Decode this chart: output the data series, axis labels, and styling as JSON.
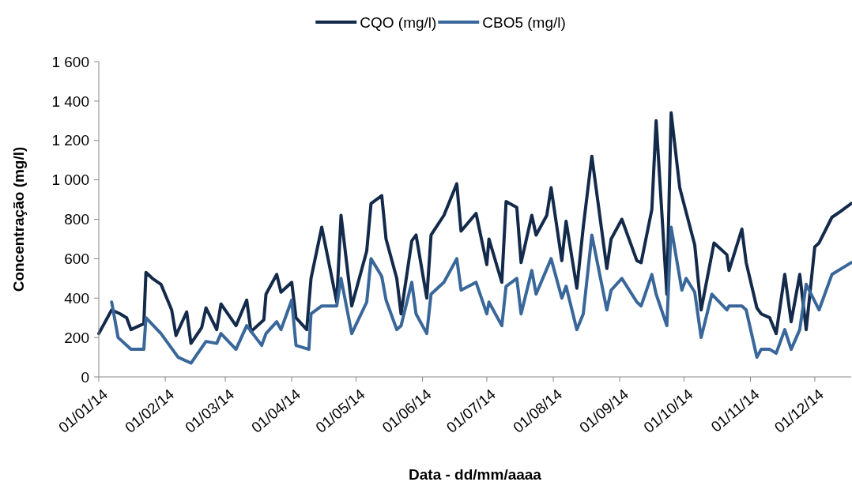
{
  "chart_data": {
    "type": "line",
    "xlabel": "Data - dd/mm/aaaa",
    "ylabel": "Concentração (mg/l)",
    "legend": "top",
    "grid": false,
    "line_style": "solid",
    "marker": "none",
    "xlim": [
      "2014-01-01",
      "2014-12-18"
    ],
    "xticks": [
      {
        "value": "2014-01-01",
        "label": "01/01/14"
      },
      {
        "value": "2014-02-01",
        "label": "01/02/14"
      },
      {
        "value": "2014-03-01",
        "label": "01/03/14"
      },
      {
        "value": "2014-04-01",
        "label": "01/04/14"
      },
      {
        "value": "2014-05-01",
        "label": "01/05/14"
      },
      {
        "value": "2014-06-01",
        "label": "01/06/14"
      },
      {
        "value": "2014-07-01",
        "label": "01/07/14"
      },
      {
        "value": "2014-08-01",
        "label": "01/08/14"
      },
      {
        "value": "2014-09-01",
        "label": "01/09/14"
      },
      {
        "value": "2014-10-01",
        "label": "01/10/14"
      },
      {
        "value": "2014-11-01",
        "label": "01/11/14"
      },
      {
        "value": "2014-12-01",
        "label": "01/12/14"
      }
    ],
    "ylim": [
      0,
      1600
    ],
    "yticks": [
      0,
      200,
      400,
      600,
      800,
      {
        "value": 1000,
        "label": "1 000"
      },
      {
        "value": 1200,
        "label": "1 200"
      },
      {
        "value": 1400,
        "label": "1 400"
      },
      {
        "value": 1600,
        "label": "1 600"
      }
    ],
    "series": [
      {
        "name": "CQO (mg/l)",
        "color": "#132a4a",
        "x": [
          "2014-01-01",
          "2014-01-07",
          "2014-01-11",
          "2014-01-14",
          "2014-01-16",
          "2014-01-22",
          "2014-01-23",
          "2014-01-26",
          "2014-01-30",
          "2014-02-04",
          "2014-02-06",
          "2014-02-11",
          "2014-02-13",
          "2014-02-18",
          "2014-02-20",
          "2014-02-25",
          "2014-02-27",
          "2014-03-06",
          "2014-03-11",
          "2014-03-13",
          "2014-03-19",
          "2014-03-20",
          "2014-03-25",
          "2014-03-27",
          "2014-04-01",
          "2014-04-03",
          "2014-04-08",
          "2014-04-10",
          "2014-04-15",
          "2014-04-22",
          "2014-04-24",
          "2014-04-29",
          "2014-05-06",
          "2014-05-08",
          "2014-05-13",
          "2014-05-15",
          "2014-05-20",
          "2014-05-22",
          "2014-05-27",
          "2014-05-29",
          "2014-06-03",
          "2014-06-05",
          "2014-06-11",
          "2014-06-17",
          "2014-06-19",
          "2014-06-26",
          "2014-07-01",
          "2014-07-02",
          "2014-07-08",
          "2014-07-10",
          "2014-07-15",
          "2014-07-17",
          "2014-07-22",
          "2014-07-24",
          "2014-07-29",
          "2014-07-31",
          "2014-08-05",
          "2014-08-07",
          "2014-08-12",
          "2014-08-15",
          "2014-08-19",
          "2014-08-26",
          "2014-08-28",
          "2014-09-02",
          "2014-09-09",
          "2014-09-11",
          "2014-09-16",
          "2014-09-18",
          "2014-09-23",
          "2014-09-25",
          "2014-09-29",
          "2014-10-06",
          "2014-10-09",
          "2014-10-15",
          "2014-10-21",
          "2014-10-22",
          "2014-10-28",
          "2014-10-30",
          "2014-11-04",
          "2014-11-06",
          "2014-11-10",
          "2014-11-13",
          "2014-11-17",
          "2014-11-20",
          "2014-11-24",
          "2014-11-27",
          "2014-12-01",
          "2014-12-03",
          "2014-12-09",
          "2014-12-13",
          "2014-12-18"
        ],
        "values": [
          220,
          340,
          320,
          300,
          240,
          270,
          530,
          500,
          470,
          340,
          210,
          330,
          170,
          250,
          350,
          240,
          370,
          260,
          390,
          230,
          290,
          420,
          520,
          430,
          480,
          300,
          240,
          500,
          760,
          380,
          820,
          360,
          640,
          880,
          920,
          700,
          500,
          320,
          690,
          720,
          400,
          720,
          820,
          980,
          740,
          830,
          570,
          700,
          480,
          890,
          860,
          580,
          820,
          720,
          820,
          960,
          590,
          790,
          450,
          760,
          1120,
          550,
          700,
          800,
          590,
          580,
          850,
          1300,
          420,
          1340,
          960,
          670,
          340,
          680,
          620,
          540,
          750,
          580,
          350,
          320,
          300,
          220,
          520,
          280,
          520,
          240,
          660,
          680,
          810,
          840,
          880
        ]
      },
      {
        "name": "CBO5 (mg/l)",
        "color": "#3a6799",
        "x": [
          "2014-01-07",
          "2014-01-10",
          "2014-01-16",
          "2014-01-22",
          "2014-01-23",
          "2014-01-30",
          "2014-02-07",
          "2014-02-13",
          "2014-02-20",
          "2014-02-25",
          "2014-02-27",
          "2014-03-06",
          "2014-03-11",
          "2014-03-18",
          "2014-03-20",
          "2014-03-25",
          "2014-03-27",
          "2014-04-01",
          "2014-04-03",
          "2014-04-09",
          "2014-04-10",
          "2014-04-15",
          "2014-04-22",
          "2014-04-24",
          "2014-04-29",
          "2014-05-06",
          "2014-05-08",
          "2014-05-13",
          "2014-05-15",
          "2014-05-20",
          "2014-05-22",
          "2014-05-27",
          "2014-05-29",
          "2014-06-03",
          "2014-06-05",
          "2014-06-11",
          "2014-06-17",
          "2014-06-19",
          "2014-06-26",
          "2014-07-01",
          "2014-07-02",
          "2014-07-08",
          "2014-07-10",
          "2014-07-15",
          "2014-07-17",
          "2014-07-22",
          "2014-07-24",
          "2014-07-31",
          "2014-08-05",
          "2014-08-07",
          "2014-08-12",
          "2014-08-15",
          "2014-08-19",
          "2014-08-26",
          "2014-08-28",
          "2014-09-02",
          "2014-09-09",
          "2014-09-11",
          "2014-09-16",
          "2014-09-18",
          "2014-09-23",
          "2014-09-25",
          "2014-09-30",
          "2014-10-02",
          "2014-10-06",
          "2014-10-09",
          "2014-10-14",
          "2014-10-21",
          "2014-10-22",
          "2014-10-28",
          "2014-10-30",
          "2014-11-04",
          "2014-11-06",
          "2014-11-10",
          "2014-11-13",
          "2014-11-17",
          "2014-11-20",
          "2014-11-24",
          "2014-11-27",
          "2014-12-03",
          "2014-12-09",
          "2014-12-18"
        ],
        "values": [
          380,
          200,
          140,
          140,
          300,
          220,
          100,
          70,
          180,
          170,
          220,
          140,
          260,
          160,
          220,
          280,
          240,
          390,
          160,
          140,
          320,
          360,
          360,
          500,
          220,
          380,
          600,
          510,
          390,
          240,
          260,
          480,
          320,
          220,
          420,
          480,
          600,
          440,
          480,
          320,
          380,
          260,
          460,
          500,
          320,
          540,
          420,
          600,
          400,
          460,
          240,
          320,
          720,
          340,
          440,
          500,
          380,
          360,
          520,
          420,
          260,
          760,
          440,
          500,
          430,
          200,
          420,
          340,
          360,
          360,
          340,
          100,
          140,
          140,
          120,
          240,
          140,
          240,
          470,
          340,
          520,
          580
        ]
      }
    ]
  }
}
